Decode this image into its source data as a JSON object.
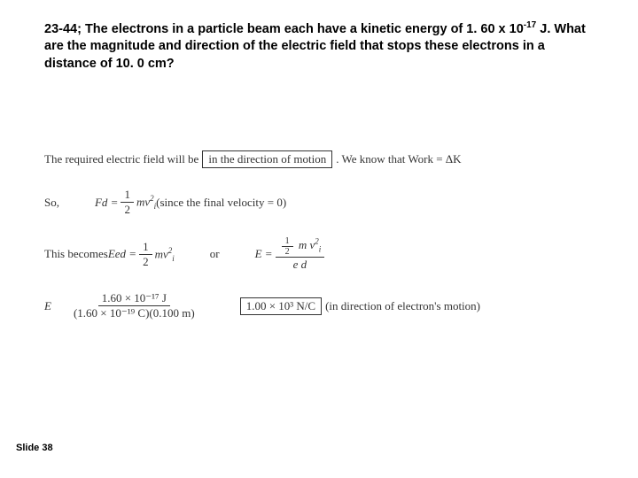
{
  "problem": {
    "line1_a": "23-44; The electrons in a particle beam each have a kinetic energy of 1. 60 x 10",
    "exp1": "-17",
    "line1_b": " J. What are the magnitude and direction of the electric field that stops these electrons in a distance of 10. 0 cm?"
  },
  "sol": {
    "r1a": "The required electric field will be ",
    "r1box": "in the direction of motion",
    "r1b": " .   We know that   Work = ΔK",
    "r2a": "So,",
    "r2b": "Fd = ",
    "r2num": "1",
    "r2den": "2",
    "r2c": " mv",
    "r2sub": "i",
    "r2sup": "2",
    "r2d": "     (since the final velocity = 0)",
    "r3a": "This becomes   ",
    "r3b": "Eed = ",
    "r3num": "1",
    "r3den": "2",
    "r3c": "mv",
    "r3sub": "i",
    "r3sup": "2",
    "r3or": "or",
    "r3e": "E = ",
    "r3tnum_half_n": "1",
    "r3tnum_half_d": "2",
    "r3tnum_rest": " m v",
    "r3tden": "e d",
    "r4a": "E",
    "r4num": "1.60 × 10⁻¹⁷ J",
    "r4den": "(1.60 × 10⁻¹⁹ C)(0.100 m)",
    "r4box": "1.00 × 10³ N/C",
    "r4b": " (in direction of electron's motion)"
  },
  "slide": "Slide 38"
}
